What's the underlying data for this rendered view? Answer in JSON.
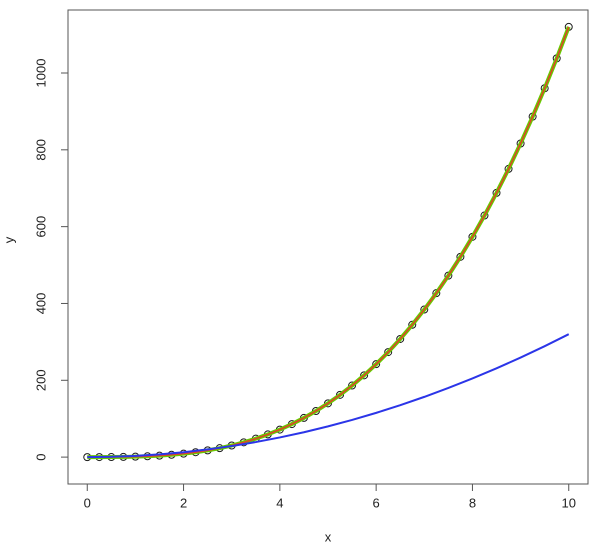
{
  "chart_data": {
    "type": "line",
    "x_label": "x",
    "y_label": "y",
    "xlim": [
      -0.4,
      10.4
    ],
    "ylim": [
      -70,
      1164
    ],
    "xticks": [
      0,
      2,
      4,
      6,
      8,
      10
    ],
    "yticks": [
      0,
      200,
      400,
      600,
      800,
      1000
    ],
    "x": [
      0,
      0.25,
      0.5,
      0.75,
      1,
      1.25,
      1.5,
      1.75,
      2,
      2.25,
      2.5,
      2.75,
      3,
      3.25,
      3.5,
      3.75,
      4,
      4.25,
      4.5,
      4.75,
      5,
      5.25,
      5.5,
      5.75,
      6,
      6.25,
      6.5,
      6.75,
      7,
      7.25,
      7.5,
      7.75,
      8,
      8.25,
      8.5,
      8.75,
      9,
      9.25,
      9.5,
      9.75,
      10
    ],
    "series": [
      {
        "type": "points",
        "color": "#1a1a1a",
        "values": [
          0,
          0.02,
          0.14,
          0.47,
          1.12,
          2.19,
          3.78,
          6.0,
          8.96,
          12.76,
          17.5,
          23.29,
          30.24,
          38.45,
          48.02,
          59.06,
          71.68,
          85.98,
          102.06,
          120.03,
          140,
          162.07,
          186.34,
          212.92,
          241.92,
          273.44,
          307.58,
          344.46,
          384.16,
          426.81,
          472.5,
          521.34,
          573.44,
          628.9,
          687.82,
          750.31,
          816.48,
          886.43,
          960.26,
          1038.08,
          1120
        ]
      },
      {
        "type": "line",
        "color": "#66cc00",
        "width": 4,
        "values": [
          0,
          0.02,
          0.14,
          0.47,
          1.12,
          2.19,
          3.78,
          6.0,
          8.96,
          12.76,
          17.5,
          23.29,
          30.24,
          38.45,
          48.02,
          59.06,
          71.68,
          85.98,
          102.06,
          120.03,
          140,
          162.07,
          186.34,
          212.92,
          241.92,
          273.44,
          307.58,
          344.46,
          384.16,
          426.81,
          472.5,
          521.34,
          573.44,
          628.9,
          687.82,
          750.31,
          816.48,
          886.43,
          960.26,
          1038.08,
          1120
        ]
      },
      {
        "type": "line",
        "color": "#e0402a",
        "width": 1.5,
        "values": [
          0,
          0.02,
          0.14,
          0.47,
          1.12,
          2.19,
          3.78,
          6.0,
          8.96,
          12.76,
          17.5,
          23.29,
          30.24,
          38.45,
          48.02,
          59.06,
          71.68,
          85.98,
          102.06,
          120.03,
          140,
          162.07,
          186.34,
          212.92,
          241.92,
          273.44,
          307.58,
          344.46,
          384.16,
          426.81,
          472.5,
          521.34,
          573.44,
          628.9,
          687.82,
          750.31,
          816.48,
          886.43,
          960.26,
          1038.08,
          1120
        ]
      },
      {
        "type": "line",
        "color": "#2b35e8",
        "width": 2,
        "x": [
          0,
          0.5,
          1,
          1.5,
          2,
          2.5,
          3,
          3.5,
          4,
          4.5,
          5,
          5.5,
          6,
          6.5,
          7,
          7.5,
          8,
          8.5,
          9,
          9.5,
          10
        ],
        "values": [
          0,
          0.8,
          3.2,
          7.2,
          12.8,
          20,
          28.8,
          39.2,
          51.2,
          64.8,
          80,
          96.8,
          115.2,
          135.2,
          156.8,
          180,
          204.8,
          231.2,
          259.2,
          288.8,
          320
        ]
      }
    ]
  }
}
